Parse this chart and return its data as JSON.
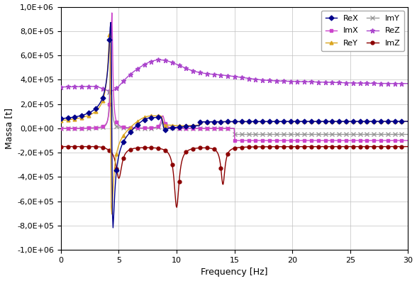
{
  "xlabel": "Frequency [Hz]",
  "ylabel": "Massa [t]",
  "xlim": [
    0,
    30
  ],
  "ylim": [
    -1000000.0,
    1000000.0
  ],
  "xticks": [
    0,
    5,
    10,
    15,
    20,
    25,
    30
  ],
  "yticks": [
    -1000000.0,
    -800000.0,
    -600000.0,
    -400000.0,
    -200000.0,
    0,
    200000.0,
    400000.0,
    600000.0,
    800000.0,
    1000000.0
  ],
  "series": {
    "ReX": {
      "color": "#00008B",
      "marker": "D",
      "markersize": 3.5,
      "linewidth": 1.0
    },
    "ImX": {
      "color": "#CC44CC",
      "marker": "s",
      "markersize": 3.5,
      "linewidth": 1.0
    },
    "ReY": {
      "color": "#DAA520",
      "marker": "^",
      "markersize": 3.5,
      "linewidth": 1.0
    },
    "ImY": {
      "color": "#999999",
      "marker": "x",
      "markersize": 4,
      "linewidth": 1.0
    },
    "ReZ": {
      "color": "#AA44CC",
      "marker": "*",
      "markersize": 5,
      "linewidth": 1.0
    },
    "ImZ": {
      "color": "#8B0000",
      "marker": "o",
      "markersize": 3.5,
      "linewidth": 1.0
    }
  },
  "background_color": "#ffffff",
  "grid_color": "#c0c0c0"
}
